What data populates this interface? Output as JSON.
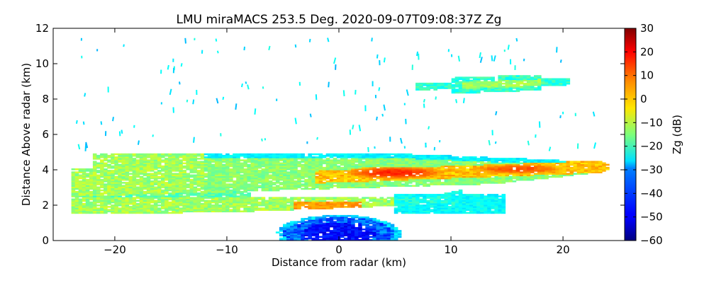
{
  "chart_data": {
    "type": "heatmap",
    "title": "LMU miraMACS 253.5 Deg. 2020-09-07T09:08:37Z  Zg",
    "xlabel": "Distance from radar (km)",
    "ylabel": "Distance Above radar  (km)",
    "xlim": [
      -25.5,
      25.5
    ],
    "ylim": [
      0,
      12
    ],
    "xticks": [
      -20,
      -10,
      0,
      10,
      20
    ],
    "yticks": [
      0,
      2,
      4,
      6,
      8,
      10,
      12
    ],
    "colorbar": {
      "label": "Zg (dB)",
      "range": [
        -60,
        30
      ],
      "ticks": [
        30,
        20,
        10,
        0,
        -10,
        -20,
        -30,
        -40,
        -50,
        -60
      ],
      "colormap": "jet"
    },
    "echo_regions": [
      {
        "name": "main stratiform layer",
        "x": [
          -24,
          24
        ],
        "z_bottom": [
          2.4,
          3.5
        ],
        "z_top": [
          4.9,
          4.4
        ],
        "typical_dB": -15
      },
      {
        "name": "bright core",
        "x": [
          -1,
          20
        ],
        "z": [
          3.4,
          4.2
        ],
        "peak_dB": 17
      },
      {
        "name": "lower layer",
        "x": [
          -24,
          11
        ],
        "z": [
          1.4,
          2.4
        ],
        "typical_dB": -12
      },
      {
        "name": "near-radar clutter",
        "x": [
          -6,
          5
        ],
        "z": [
          0,
          1.3
        ],
        "typical_dB": -42
      },
      {
        "name": "elevated cloud",
        "x": [
          7,
          20.5
        ],
        "z": [
          8.4,
          9.6
        ],
        "typical_dB": -17
      }
    ]
  }
}
